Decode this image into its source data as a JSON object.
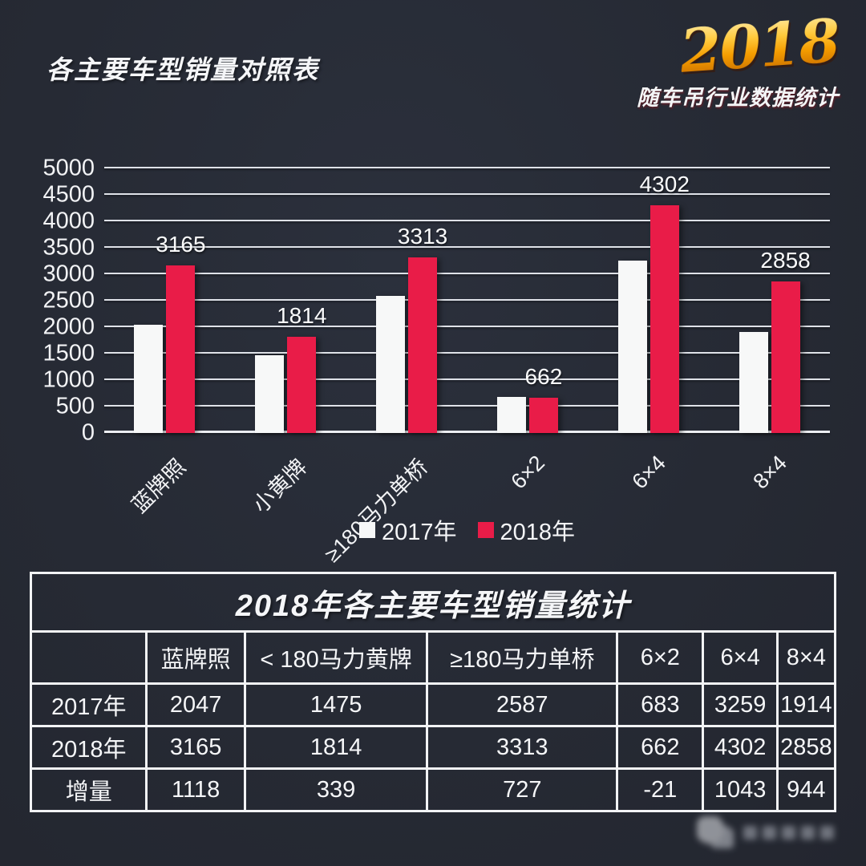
{
  "header": {
    "title": "各主要车型销量对照表",
    "logo_year": "2018",
    "logo_subtitle": "随车吊行业数据统计"
  },
  "colors": {
    "background": "#262a34",
    "bar_2017": "#f7f8f8",
    "bar_2018": "#e91c48",
    "gridline": "#dfe2e8",
    "text": "#f5f6f8",
    "logo_gold": "#f5a700"
  },
  "chart_data": {
    "type": "bar",
    "title": "",
    "categories": [
      "蓝牌照",
      "小黄牌",
      "≥180马力单桥",
      "6×2",
      "6×4",
      "8×4"
    ],
    "series": [
      {
        "name": "2017年",
        "color": "#f7f8f8",
        "values": [
          2047,
          1475,
          2587,
          683,
          3259,
          1914
        ]
      },
      {
        "name": "2018年",
        "color": "#e91c48",
        "values": [
          3165,
          1814,
          3313,
          662,
          4302,
          2858
        ]
      }
    ],
    "data_labels": {
      "series": "2018年",
      "values": [
        3165,
        1814,
        3313,
        662,
        4302,
        2858
      ]
    },
    "xlabel": "",
    "ylabel": "",
    "ylim": [
      0,
      5000
    ],
    "yticks": [
      0,
      500,
      1000,
      1500,
      2000,
      2500,
      3000,
      3500,
      4000,
      4500,
      5000
    ],
    "grid": true,
    "legend_position": "bottom-center",
    "x_tick_rotation_deg": -45
  },
  "legend": {
    "items": [
      {
        "label": "2017年",
        "color": "#f7f8f8"
      },
      {
        "label": "2018年",
        "color": "#e91c48"
      }
    ]
  },
  "table": {
    "title": "2018年各主要车型销量统计",
    "columns": [
      "",
      "蓝牌照",
      "< 180马力黄牌",
      "≥180马力单桥",
      "6×2",
      "6×4",
      "8×4"
    ],
    "rows": [
      {
        "label": "2017年",
        "values": [
          2047,
          1475,
          2587,
          683,
          3259,
          1914
        ]
      },
      {
        "label": "2018年",
        "values": [
          3165,
          1814,
          3313,
          662,
          4302,
          2858
        ]
      },
      {
        "label": "增量",
        "values": [
          1118,
          339,
          727,
          -21,
          1043,
          944
        ]
      }
    ]
  }
}
